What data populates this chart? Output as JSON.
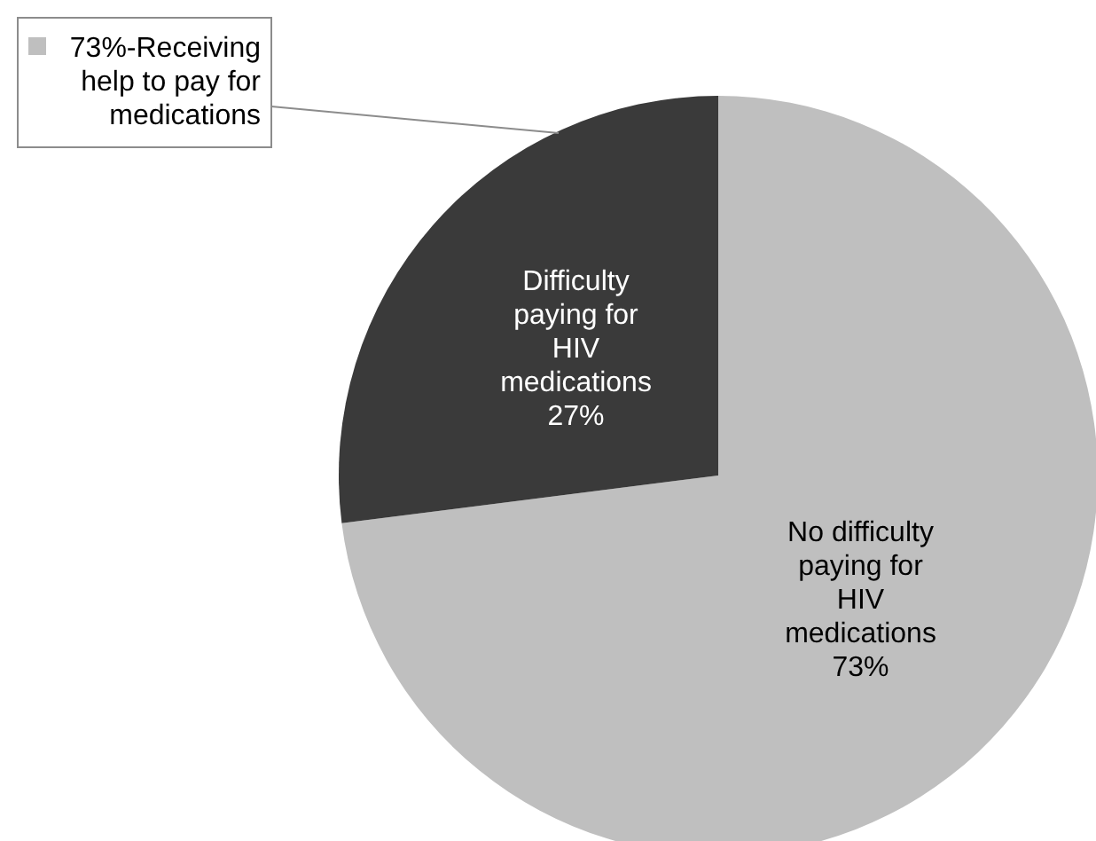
{
  "chart_data": {
    "type": "pie",
    "categories": [
      "No difficulty paying for HIV medications",
      "Difficulty paying for HIV medications"
    ],
    "values": [
      73,
      27
    ],
    "value_labels": [
      "73%",
      "27%"
    ],
    "colors": [
      "#bfbfbf",
      "#3a3a3a"
    ],
    "annotations": [
      "73%-Receiving help to pay for medications"
    ]
  }
}
